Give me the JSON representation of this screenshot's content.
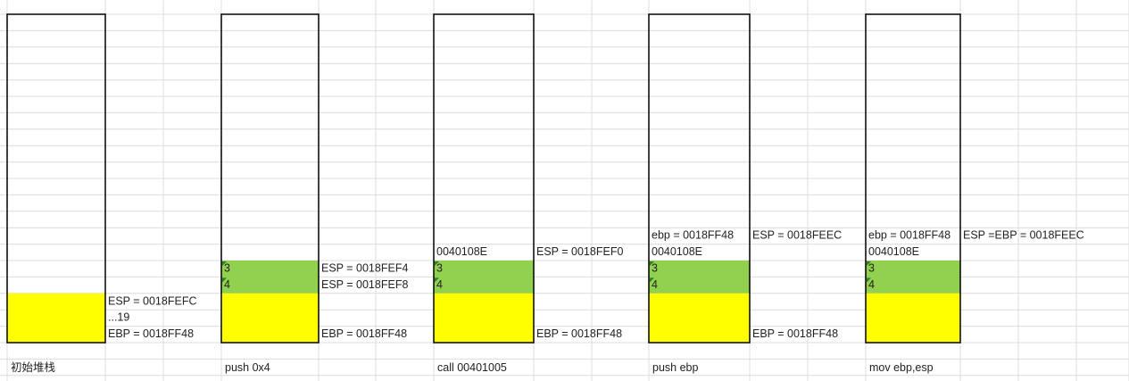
{
  "panels": [
    {
      "caption": "初始堆栈",
      "labels": [
        "ESP = 0018FEFC",
        "...19",
        "EBP = 0018FF48"
      ]
    },
    {
      "caption": "push 0x4",
      "stack": [
        "3",
        "4"
      ],
      "labels": [
        "ESP = 0018FEF4",
        "ESP = 0018FEF8",
        "EBP = 0018FF48"
      ]
    },
    {
      "caption": "call 00401005",
      "stack": [
        "0040108E",
        "3",
        "4"
      ],
      "labels": [
        "ESP = 0018FEF0",
        "EBP = 0018FF48"
      ]
    },
    {
      "caption": "push ebp",
      "stack": [
        "ebp = 0018FF48",
        "0040108E",
        "3",
        "4"
      ],
      "labels": [
        "ESP = 0018FEEC",
        "EBP = 0018FF48"
      ]
    },
    {
      "caption": "mov ebp,esp",
      "stack": [
        "ebp = 0018FF48",
        "0040108E",
        "3",
        "4"
      ],
      "labels": [
        "ESP =EBP =  0018FEEC"
      ]
    }
  ]
}
